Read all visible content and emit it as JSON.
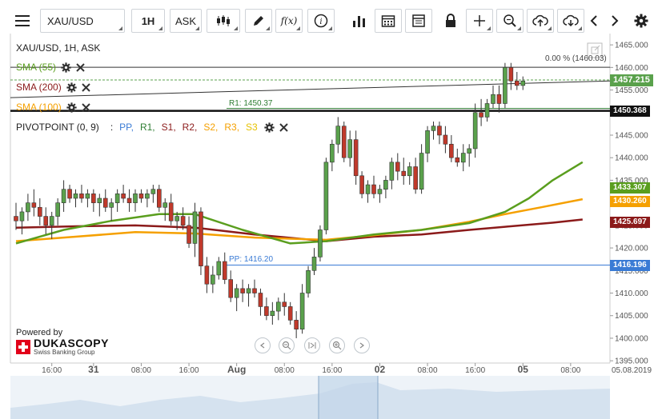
{
  "toolbar": {
    "symbol": "XAU/USD",
    "timeframe": "1H",
    "side": "ASK",
    "icons": [
      "menu-icon",
      "candlestick-icon",
      "pencil-icon",
      "function-icon",
      "info-icon",
      "bar-chart-icon",
      "calendar-icon",
      "table-icon",
      "lock-icon",
      "crosshair-icon",
      "zoom-icon",
      "upload-cloud-icon",
      "download-cloud-icon",
      "chevron-left-icon",
      "chevron-right-icon",
      "gear-icon"
    ]
  },
  "chart_header": {
    "title": "XAU/USD, 1H, ASK"
  },
  "indicators": [
    {
      "label": "SMA (55)",
      "color": "#5a9e1e"
    },
    {
      "label": "SMA (200)",
      "color": "#8b1a1a"
    },
    {
      "label": "SMA (100)",
      "color": "#f5a000"
    }
  ],
  "pivot": {
    "label": "PIVOTPOINT (0, 9)",
    "separator": ":",
    "parts": [
      {
        "text": "PP,",
        "color": "#3a7bd5"
      },
      {
        "text": "R1,",
        "color": "#2e7d32"
      },
      {
        "text": "S1,",
        "color": "#8b1a1a"
      },
      {
        "text": "R2,",
        "color": "#8b1a1a"
      },
      {
        "text": "S2,",
        "color": "#f5a000"
      },
      {
        "text": "R3,",
        "color": "#f5a000"
      },
      {
        "text": "S3",
        "color": "#e6c200"
      }
    ]
  },
  "chart_data": {
    "type": "candlestick",
    "y_ticks": [
      1465,
      1460,
      1455,
      1450,
      1445,
      1440,
      1435,
      1430,
      1425,
      1420,
      1415,
      1410,
      1405,
      1400,
      1395
    ],
    "y_tick_labels": [
      "1465.000",
      "1460.000",
      "1455.000",
      "1450.000",
      "1445.000",
      "1440.000",
      "1435.000",
      "1430.000",
      "1425.000",
      "1420.000",
      "1415.000",
      "1410.000",
      "1405.000",
      "1400.000",
      "1395.000"
    ],
    "ylim": [
      1394.5,
      1467.5
    ],
    "x_labels": [
      {
        "label": "16:00",
        "idx": 6
      },
      {
        "label": "31",
        "idx": 13,
        "bold": true
      },
      {
        "label": "08:00",
        "idx": 21
      },
      {
        "label": "16:00",
        "idx": 29
      },
      {
        "label": "Aug",
        "idx": 37,
        "bold": true
      },
      {
        "label": "08:00",
        "idx": 45
      },
      {
        "label": "16:00",
        "idx": 53
      },
      {
        "label": "02",
        "idx": 61,
        "bold": true
      },
      {
        "label": "08:00",
        "idx": 69
      },
      {
        "label": "16:00",
        "idx": 77
      },
      {
        "label": "05",
        "idx": 85,
        "bold": true
      },
      {
        "label": "08:00",
        "idx": 93
      }
    ],
    "date_label": "05.08.2019",
    "candles": [
      [
        1427,
        1430,
        1424,
        1426
      ],
      [
        1426,
        1429,
        1423,
        1428
      ],
      [
        1428,
        1432,
        1426,
        1430
      ],
      [
        1430,
        1433,
        1427,
        1429
      ],
      [
        1429,
        1431,
        1425,
        1427
      ],
      [
        1427,
        1429,
        1423,
        1425
      ],
      [
        1425,
        1428,
        1422,
        1427
      ],
      [
        1427,
        1431,
        1425,
        1430
      ],
      [
        1430,
        1435,
        1428,
        1433
      ],
      [
        1433,
        1434,
        1430,
        1431
      ],
      [
        1431,
        1433,
        1429,
        1432
      ],
      [
        1432,
        1434,
        1430,
        1431
      ],
      [
        1431,
        1433,
        1429,
        1432
      ],
      [
        1432,
        1433,
        1428,
        1430
      ],
      [
        1430,
        1432,
        1427,
        1431
      ],
      [
        1431,
        1433,
        1428,
        1429
      ],
      [
        1429,
        1431,
        1426,
        1430
      ],
      [
        1430,
        1433,
        1428,
        1432
      ],
      [
        1432,
        1434,
        1430,
        1431
      ],
      [
        1431,
        1433,
        1428,
        1430
      ],
      [
        1430,
        1433,
        1428,
        1432
      ],
      [
        1432,
        1433,
        1430,
        1431
      ],
      [
        1431,
        1433,
        1429,
        1432
      ],
      [
        1432,
        1434,
        1430,
        1433
      ],
      [
        1433,
        1434,
        1428,
        1429
      ],
      [
        1429,
        1431,
        1426,
        1430
      ],
      [
        1430,
        1432,
        1425,
        1426
      ],
      [
        1426,
        1428,
        1424,
        1427
      ],
      [
        1427,
        1429,
        1424,
        1425
      ],
      [
        1425,
        1427,
        1420,
        1421
      ],
      [
        1421,
        1430,
        1418,
        1428
      ],
      [
        1428,
        1429,
        1414,
        1416
      ],
      [
        1416,
        1418,
        1410,
        1412
      ],
      [
        1412,
        1416,
        1410,
        1414
      ],
      [
        1414,
        1418,
        1413,
        1417
      ],
      [
        1417,
        1419,
        1412,
        1413
      ],
      [
        1413,
        1415,
        1408,
        1409
      ],
      [
        1409,
        1412,
        1406,
        1411
      ],
      [
        1411,
        1413,
        1408,
        1410
      ],
      [
        1410,
        1412,
        1407,
        1411
      ],
      [
        1411,
        1413,
        1409,
        1410
      ],
      [
        1410,
        1411,
        1405,
        1407
      ],
      [
        1407,
        1409,
        1404,
        1405
      ],
      [
        1405,
        1408,
        1403,
        1406
      ],
      [
        1406,
        1409,
        1404,
        1408
      ],
      [
        1408,
        1410,
        1405,
        1407
      ],
      [
        1407,
        1408,
        1403,
        1404
      ],
      [
        1404,
        1406,
        1400,
        1402
      ],
      [
        1402,
        1412,
        1401,
        1410
      ],
      [
        1410,
        1416,
        1409,
        1415
      ],
      [
        1415,
        1420,
        1414,
        1418
      ],
      [
        1418,
        1425,
        1417,
        1424
      ],
      [
        1424,
        1440,
        1423,
        1439
      ],
      [
        1439,
        1444,
        1437,
        1443
      ],
      [
        1443,
        1449,
        1441,
        1447
      ],
      [
        1447,
        1448,
        1439,
        1440
      ],
      [
        1440,
        1446,
        1438,
        1444
      ],
      [
        1444,
        1446,
        1434,
        1436
      ],
      [
        1436,
        1437,
        1431,
        1432
      ],
      [
        1432,
        1435,
        1430,
        1434
      ],
      [
        1434,
        1436,
        1431,
        1432
      ],
      [
        1432,
        1434,
        1430,
        1433
      ],
      [
        1433,
        1436,
        1431,
        1435
      ],
      [
        1435,
        1440,
        1433,
        1439
      ],
      [
        1439,
        1441,
        1435,
        1437
      ],
      [
        1437,
        1440,
        1434,
        1436
      ],
      [
        1436,
        1439,
        1434,
        1438
      ],
      [
        1438,
        1440,
        1432,
        1433
      ],
      [
        1433,
        1443,
        1432,
        1441
      ],
      [
        1441,
        1447,
        1439,
        1446
      ],
      [
        1446,
        1448,
        1444,
        1447
      ],
      [
        1447,
        1448,
        1443,
        1445
      ],
      [
        1445,
        1447,
        1441,
        1443
      ],
      [
        1443,
        1445,
        1439,
        1440
      ],
      [
        1440,
        1442,
        1438,
        1439
      ],
      [
        1439,
        1443,
        1437,
        1441
      ],
      [
        1441,
        1443,
        1438,
        1442
      ],
      [
        1442,
        1452,
        1440,
        1450
      ],
      [
        1450,
        1453,
        1447,
        1449
      ],
      [
        1449,
        1453,
        1448,
        1452
      ],
      [
        1452,
        1456,
        1451,
        1454
      ],
      [
        1454,
        1456,
        1450,
        1452
      ],
      [
        1452,
        1461,
        1451,
        1460
      ],
      [
        1460,
        1461,
        1455,
        1457
      ],
      [
        1457,
        1459,
        1455,
        1456
      ],
      [
        1456,
        1458,
        1455,
        1457
      ]
    ],
    "sma55": [
      [
        0,
        1421
      ],
      [
        8,
        1424
      ],
      [
        16,
        1426
      ],
      [
        24,
        1427.5
      ],
      [
        30,
        1427.5
      ],
      [
        38,
        1424
      ],
      [
        46,
        1421
      ],
      [
        52,
        1421.5
      ],
      [
        60,
        1423
      ],
      [
        68,
        1424
      ],
      [
        76,
        1425.5
      ],
      [
        82,
        1428
      ],
      [
        86,
        1431
      ],
      [
        90,
        1435
      ],
      [
        95,
        1439
      ]
    ],
    "sma200": [
      [
        0,
        1424.5
      ],
      [
        10,
        1424.8
      ],
      [
        20,
        1425
      ],
      [
        30,
        1424.5
      ],
      [
        40,
        1423
      ],
      [
        52,
        1421.5
      ],
      [
        60,
        1422.5
      ],
      [
        68,
        1423
      ],
      [
        76,
        1424
      ],
      [
        82,
        1424.7
      ],
      [
        90,
        1425.6
      ],
      [
        95,
        1426.3
      ]
    ],
    "sma100": [
      [
        0,
        1421.5
      ],
      [
        10,
        1422.5
      ],
      [
        20,
        1423.5
      ],
      [
        30,
        1423.2
      ],
      [
        40,
        1422.3
      ],
      [
        52,
        1421.8
      ],
      [
        60,
        1422.8
      ],
      [
        68,
        1424
      ],
      [
        76,
        1425.8
      ],
      [
        82,
        1427.5
      ],
      [
        88,
        1429
      ],
      [
        95,
        1430.8
      ]
    ],
    "pivot_levels": [
      {
        "label": "PP: 1416.20",
        "value": 1416.2,
        "color": "#3a7bd5"
      },
      {
        "label": "R1: 1450.37",
        "value": 1450.37,
        "color": "#2e7d32"
      }
    ],
    "fib_label": "0.00 % (1460.03)",
    "fib_value": 1460.03,
    "badges": [
      {
        "text": "1457.215",
        "value": 1457.215,
        "color": "#5aa14c"
      },
      {
        "text": "1450.368",
        "value": 1450.368,
        "color": "#111111"
      },
      {
        "text": "1433.307",
        "value": 1433.307,
        "color": "#5a9e1e"
      },
      {
        "text": "1430.260",
        "value": 1430.26,
        "color": "#f5a000"
      },
      {
        "text": "1425.697",
        "value": 1425.697,
        "color": "#8b1a1a"
      },
      {
        "text": "1416.196",
        "value": 1416.196,
        "color": "#3a7bd5"
      }
    ]
  },
  "branding": {
    "powered_by": "Powered by",
    "name": "DUKASCOPY",
    "sub": "Swiss Banking Group"
  }
}
